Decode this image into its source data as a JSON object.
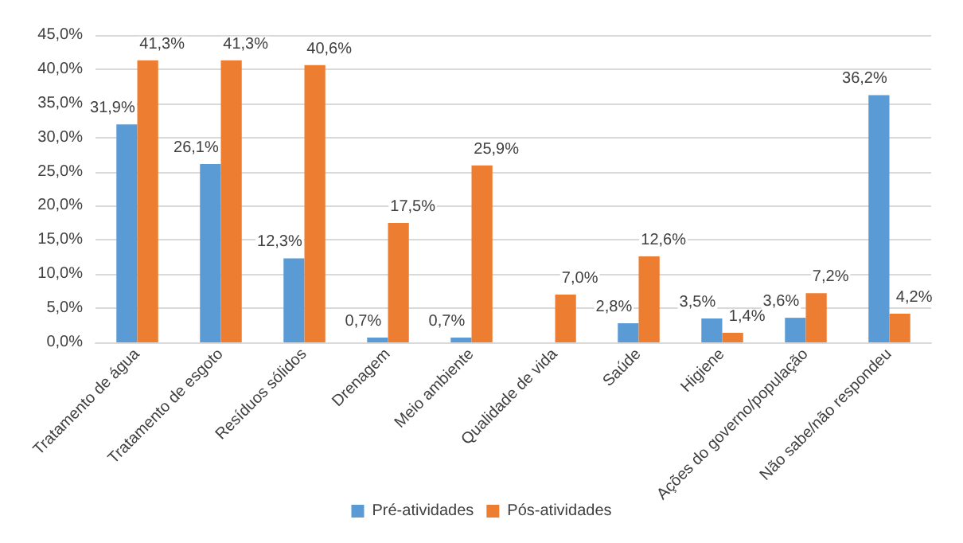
{
  "chart_data": {
    "type": "bar",
    "categories": [
      "Tratamento de água",
      "Tratamento de esgoto",
      "Resíduos sólidos",
      "Drenagem",
      "Meio ambiente",
      "Qualidade de vida",
      "Saúde",
      "Higiene",
      "Ações do governo/população",
      "Não sabe/não respondeu"
    ],
    "series": [
      {
        "name": "Pré-atividades",
        "color": "#5b9bd5",
        "values": [
          31.9,
          26.1,
          12.3,
          0.7,
          0.7,
          null,
          2.8,
          3.5,
          3.6,
          36.2
        ],
        "value_labels": [
          "31,9%",
          "26,1%",
          "12,3%",
          "0,7%",
          "0,7%",
          null,
          "2,8%",
          "3,5%",
          "3,6%",
          "36,2%"
        ]
      },
      {
        "name": "Pós-atividades",
        "color": "#ed7d31",
        "values": [
          41.3,
          41.3,
          40.6,
          17.5,
          25.9,
          7.0,
          12.6,
          1.4,
          7.2,
          4.2
        ],
        "value_labels": [
          "41,3%",
          "41,3%",
          "40,6%",
          "17,5%",
          "25,9%",
          "7,0%",
          "12,6%",
          "1,4%",
          "7,2%",
          "4,2%"
        ]
      }
    ],
    "ylim": [
      0,
      45
    ],
    "yticks": [
      {
        "value": 0,
        "label": "0,0%"
      },
      {
        "value": 5,
        "label": "5,0%"
      },
      {
        "value": 10,
        "label": "10,0%"
      },
      {
        "value": 15,
        "label": "15,0%"
      },
      {
        "value": 20,
        "label": "20,0%"
      },
      {
        "value": 25,
        "label": "25,0%"
      },
      {
        "value": 30,
        "label": "30,0%"
      },
      {
        "value": 35,
        "label": "35,0%"
      },
      {
        "value": 40,
        "label": "40,0%"
      },
      {
        "value": 45,
        "label": "45,0%"
      }
    ],
    "grid": true,
    "legend": "bottom"
  }
}
